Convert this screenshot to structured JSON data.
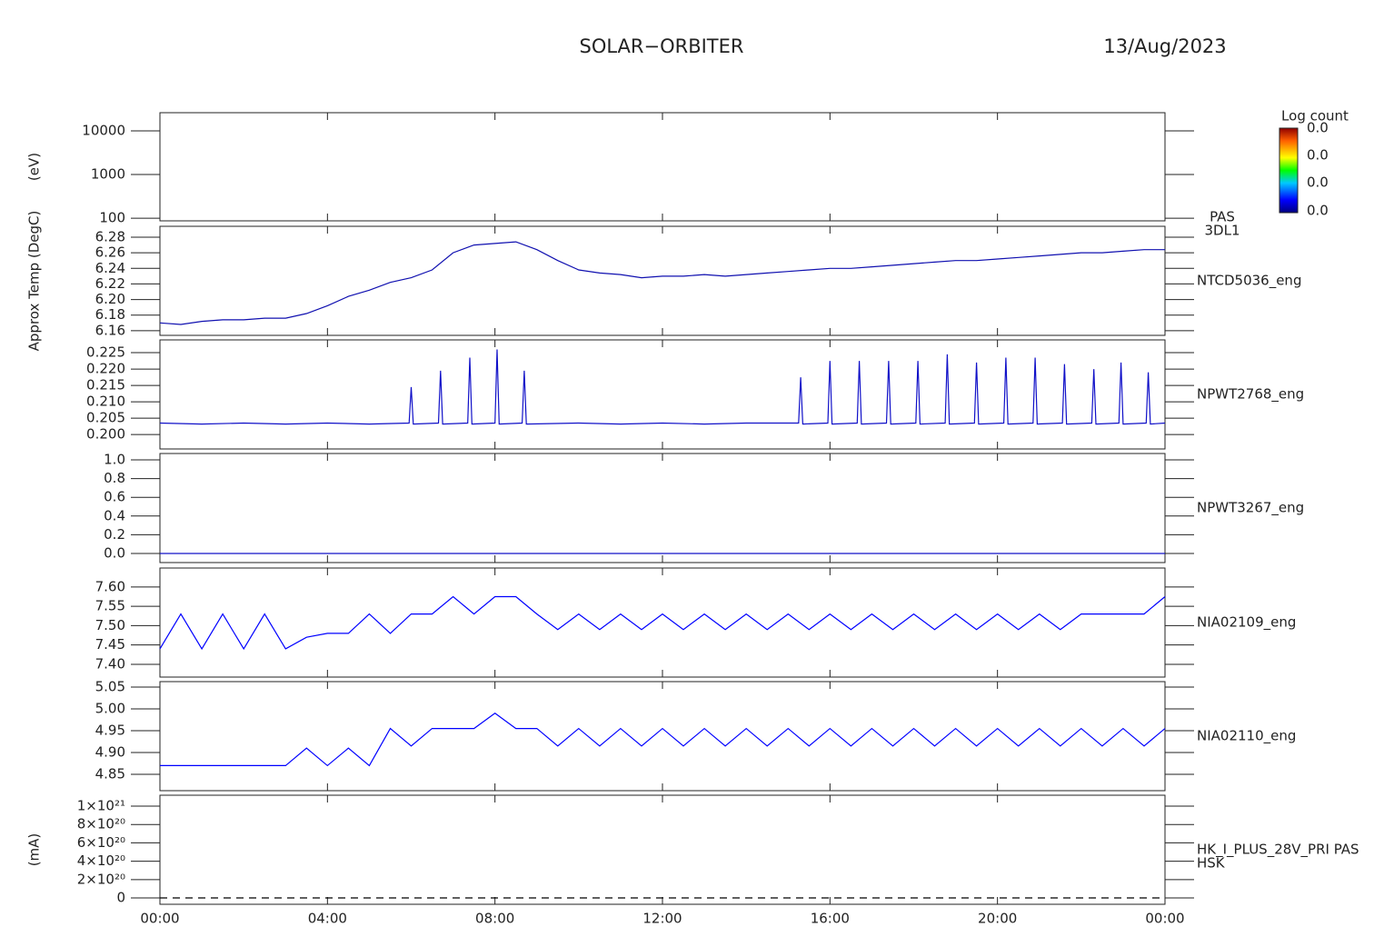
{
  "title": "SOLAR−ORBITER",
  "date": "13/Aug/2023",
  "colorbar": {
    "label": "Log count",
    "ticks": [
      "0.0",
      "0.0",
      "0.0",
      "0.0"
    ]
  },
  "chart_data": [
    {
      "type": "spectrogram",
      "ylabel": "(eV)",
      "log": true,
      "ylim": [
        87,
        26000
      ],
      "yticks": [
        100,
        1000,
        10000
      ],
      "labels": [
        "PAS",
        "3DL1"
      ],
      "label_color": "#000000"
    },
    {
      "type": "line",
      "ylabel": "Approx Temp (DegC)",
      "ylim": [
        6.154,
        6.294
      ],
      "yticks": [
        6.16,
        6.18,
        {
          "value": 6.2,
          "label": "6.20"
        },
        6.22,
        6.24,
        6.26,
        6.28
      ],
      "x": [
        0,
        0.5,
        1,
        1.5,
        2,
        2.5,
        3,
        3.5,
        4,
        4.5,
        5,
        5.5,
        6,
        6.5,
        7,
        7.5,
        8,
        8.5,
        9,
        9.5,
        10,
        10.5,
        11,
        11.5,
        12,
        12.5,
        13,
        13.5,
        14,
        14.5,
        15,
        15.5,
        16,
        16.5,
        17,
        17.5,
        18,
        18.5,
        19,
        19.5,
        20,
        20.5,
        21,
        21.5,
        22,
        22.5,
        23,
        23.5,
        24
      ],
      "series": [
        {
          "name": "NTCD5036_eng",
          "color": "#1010b0",
          "values": [
            6.17,
            6.168,
            6.172,
            6.174,
            6.174,
            6.176,
            6.176,
            6.182,
            6.192,
            6.204,
            6.212,
            6.222,
            6.228,
            6.238,
            6.26,
            6.27,
            6.272,
            6.274,
            6.264,
            6.25,
            6.238,
            6.234,
            6.232,
            6.228,
            6.23,
            6.23,
            6.232,
            6.23,
            6.232,
            6.234,
            6.236,
            6.238,
            6.24,
            6.24,
            6.242,
            6.244,
            6.246,
            6.248,
            6.25,
            6.25,
            6.252,
            6.254,
            6.256,
            6.258,
            6.26,
            6.26,
            6.262,
            6.264,
            6.264
          ]
        }
      ],
      "label_color": "#1010b0"
    },
    {
      "type": "line",
      "ylim": [
        0.1956,
        0.2289
      ],
      "yticks": [
        {
          "value": 0.2,
          "label": "0.200"
        },
        {
          "value": 0.205,
          "label": "0.205"
        },
        {
          "value": 0.21,
          "label": "0.210"
        },
        {
          "value": 0.215,
          "label": "0.215"
        },
        {
          "value": 0.22,
          "label": "0.220"
        },
        {
          "value": 0.225,
          "label": "0.225"
        }
      ],
      "x": [
        0,
        1,
        2,
        3,
        4,
        5,
        5.95,
        6.0,
        6.05,
        6.65,
        6.7,
        6.75,
        7.35,
        7.4,
        7.45,
        8.0,
        8.05,
        8.1,
        8.65,
        8.7,
        8.75,
        10,
        11,
        12,
        13,
        14,
        15.25,
        15.3,
        15.35,
        15.95,
        16.0,
        16.05,
        16.65,
        16.7,
        16.75,
        17.35,
        17.4,
        17.45,
        18.05,
        18.1,
        18.15,
        18.75,
        18.8,
        18.85,
        19.45,
        19.5,
        19.55,
        20.15,
        20.2,
        20.25,
        20.85,
        20.9,
        20.95,
        21.55,
        21.6,
        21.65,
        22.25,
        22.3,
        22.35,
        22.9,
        22.95,
        23.0,
        23.55,
        23.6,
        23.65,
        24
      ],
      "series": [
        {
          "name": "NPWT2768_eng",
          "color": "#1010c8",
          "values": [
            0.2035,
            0.2032,
            0.2035,
            0.2032,
            0.2035,
            0.2032,
            0.2035,
            0.2145,
            0.2032,
            0.2035,
            0.2195,
            0.2032,
            0.2035,
            0.2235,
            0.2032,
            0.2035,
            0.226,
            0.2032,
            0.2035,
            0.2195,
            0.2032,
            0.2035,
            0.2032,
            0.2035,
            0.2032,
            0.2035,
            0.2035,
            0.2175,
            0.2032,
            0.2035,
            0.2225,
            0.2032,
            0.2035,
            0.2225,
            0.2032,
            0.2035,
            0.2225,
            0.2032,
            0.2035,
            0.2225,
            0.2032,
            0.2035,
            0.2245,
            0.2032,
            0.2035,
            0.222,
            0.2032,
            0.2035,
            0.2235,
            0.2032,
            0.2035,
            0.2235,
            0.2032,
            0.2035,
            0.2215,
            0.2032,
            0.2035,
            0.22,
            0.2032,
            0.2035,
            0.222,
            0.2032,
            0.2035,
            0.219,
            0.2032,
            0.2035
          ]
        }
      ],
      "label_color": "#1010b0"
    },
    {
      "type": "line",
      "ylim": [
        -0.097,
        1.068
      ],
      "yticks": [
        {
          "value": 0,
          "label": "0.0"
        },
        0.2,
        0.4,
        0.6,
        0.8,
        {
          "value": 1,
          "label": "1.0"
        }
      ],
      "x": [
        0,
        24
      ],
      "series": [
        {
          "name": "NPWT3267_eng",
          "color": "#1010c8",
          "values": [
            0,
            0
          ]
        }
      ],
      "label_color": "#1010b0"
    },
    {
      "type": "line",
      "ylim": [
        7.367,
        7.649
      ],
      "yticks": [
        {
          "value": 7.4,
          "label": "7.40"
        },
        7.45,
        {
          "value": 7.5,
          "label": "7.50"
        },
        7.55,
        {
          "value": 7.6,
          "label": "7.60"
        }
      ],
      "x": [
        0,
        0.5,
        1,
        1.5,
        2,
        2.5,
        3,
        3.5,
        4,
        4.5,
        5,
        5.5,
        6,
        6.5,
        7,
        7.5,
        8,
        8.5,
        9,
        9.5,
        10,
        10.5,
        11,
        11.5,
        12,
        12.5,
        13,
        13.5,
        14,
        14.5,
        15,
        15.5,
        16,
        16.5,
        17,
        17.5,
        18,
        18.5,
        19,
        19.5,
        20,
        20.5,
        21,
        21.5,
        22,
        22.5,
        23,
        23.5,
        24
      ],
      "series": [
        {
          "name": "NIA02109_eng",
          "color": "#0000ff",
          "values": [
            7.44,
            7.53,
            7.44,
            7.53,
            7.44,
            7.53,
            7.44,
            7.47,
            7.48,
            7.48,
            7.53,
            7.48,
            7.53,
            7.53,
            7.575,
            7.53,
            7.575,
            7.575,
            7.53,
            7.49,
            7.53,
            7.49,
            7.53,
            7.49,
            7.53,
            7.49,
            7.53,
            7.49,
            7.53,
            7.49,
            7.53,
            7.49,
            7.53,
            7.49,
            7.53,
            7.49,
            7.53,
            7.49,
            7.53,
            7.49,
            7.53,
            7.49,
            7.53,
            7.49,
            7.53,
            7.53,
            7.53,
            7.53,
            7.575
          ]
        }
      ],
      "label_color": "#1010b0"
    },
    {
      "type": "line",
      "ylim": [
        4.8125,
        5.0625
      ],
      "yticks": [
        4.85,
        {
          "value": 4.9,
          "label": "4.90"
        },
        4.95,
        {
          "value": 5,
          "label": "5.00"
        },
        5.05
      ],
      "x": [
        0,
        0.5,
        1,
        1.5,
        2,
        2.5,
        3,
        3.5,
        4,
        4.5,
        5,
        5.5,
        6,
        6.5,
        7,
        7.5,
        8,
        8.5,
        9,
        9.5,
        10,
        10.5,
        11,
        11.5,
        12,
        12.5,
        13,
        13.5,
        14,
        14.5,
        15,
        15.5,
        16,
        16.5,
        17,
        17.5,
        18,
        18.5,
        19,
        19.5,
        20,
        20.5,
        21,
        21.5,
        22,
        22.5,
        23,
        23.5,
        24
      ],
      "series": [
        {
          "name": "NIA02110_eng",
          "color": "#0000ff",
          "values": [
            4.87,
            4.87,
            4.87,
            4.87,
            4.87,
            4.87,
            4.87,
            4.91,
            4.87,
            4.91,
            4.87,
            4.955,
            4.915,
            4.955,
            4.955,
            4.955,
            4.99,
            4.955,
            4.955,
            4.915,
            4.955,
            4.915,
            4.955,
            4.915,
            4.955,
            4.915,
            4.955,
            4.915,
            4.955,
            4.915,
            4.955,
            4.915,
            4.955,
            4.915,
            4.955,
            4.915,
            4.955,
            4.915,
            4.955,
            4.915,
            4.955,
            4.915,
            4.955,
            4.915,
            4.955,
            4.915,
            4.955,
            4.915,
            4.955
          ]
        }
      ],
      "label_color": "#1010b0"
    },
    {
      "type": "line",
      "ylabel": "(mA)",
      "ylim": [
        -6.9e+19,
        1.119e+21
      ],
      "yticks": [
        0,
        {
          "value": 2e+20,
          "label": "2×10²⁰"
        },
        {
          "value": 4e+20,
          "label": "4×10²⁰"
        },
        {
          "value": 6e+20,
          "label": "6×10²⁰"
        },
        {
          "value": 8e+20,
          "label": "8×10²⁰"
        },
        {
          "value": 1e+21,
          "label": "1×10²¹"
        }
      ],
      "x": [
        0,
        24
      ],
      "series": [
        {
          "name": "HK_I_PLUS_28V_PRI PAS",
          "color": "#000000",
          "dashed": true,
          "values": [
            0,
            0
          ]
        }
      ],
      "labels": [
        "HSK"
      ],
      "label_color": "#1010b0",
      "xlim": [
        0,
        24
      ],
      "xticks": [
        {
          "value": 0,
          "label": "00:00"
        },
        {
          "value": 4,
          "label": "04:00"
        },
        {
          "value": 8,
          "label": "08:00"
        },
        {
          "value": 12,
          "label": "12:00"
        },
        {
          "value": 16,
          "label": "16:00"
        },
        {
          "value": 20,
          "label": "20:00"
        },
        {
          "value": 24,
          "label": "00:00"
        }
      ]
    }
  ]
}
